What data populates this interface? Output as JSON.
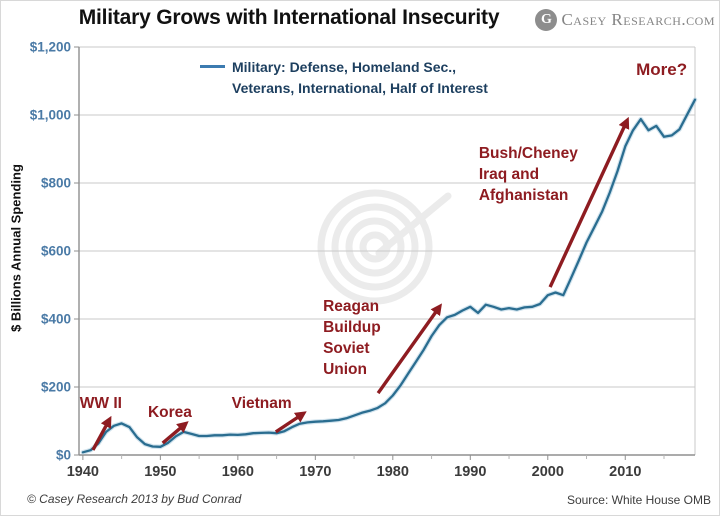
{
  "header": {
    "title": "Military Grows with International Insecurity",
    "logo": {
      "monogram": "G",
      "text": "Casey Research.com"
    }
  },
  "legend": {
    "label": "Military: Defense, Homeland Sec.,\nVeterans, International, Half of Interest"
  },
  "footer": {
    "left": "© Casey Research 2013 by Bud Conrad",
    "right": "Source: White House OMB"
  },
  "colors": {
    "line": "#2a6d90",
    "line_halo": "#b5d2e2",
    "legend_line": "#3c7bb0",
    "axis_label_blue": "#4a7aa6",
    "tick_label_dark": "#3b3b3b",
    "annotation_red": "#8e1c21",
    "grid": "#c9c9c9",
    "axis": "#8f8f8f",
    "minor_tick": "#b5b5b5",
    "watermark": "#ebebeb"
  },
  "chart_data": {
    "type": "line",
    "title": "Military Grows with International Insecurity",
    "ylabel": "$ Billions Annual Spending",
    "xlabel": "",
    "grid": true,
    "legend_position": "top-center",
    "x_range": [
      1939.5,
      2019
    ],
    "ylim": [
      0,
      1200
    ],
    "y_ticks": [
      {
        "value": 0,
        "label": "$0"
      },
      {
        "value": 200,
        "label": "$200"
      },
      {
        "value": 400,
        "label": "$400"
      },
      {
        "value": 600,
        "label": "$600"
      },
      {
        "value": 800,
        "label": "$800"
      },
      {
        "value": 1000,
        "label": "$1,000"
      },
      {
        "value": 1200,
        "label": "$1,200"
      }
    ],
    "x_ticks": [
      {
        "value": 1940,
        "label": "1940"
      },
      {
        "value": 1950,
        "label": "1950"
      },
      {
        "value": 1960,
        "label": "1960"
      },
      {
        "value": 1970,
        "label": "1970"
      },
      {
        "value": 1980,
        "label": "1980"
      },
      {
        "value": 1990,
        "label": "1990"
      },
      {
        "value": 2000,
        "label": "2000"
      },
      {
        "value": 2010,
        "label": "2010"
      }
    ],
    "x_minor_ticks": [
      1945,
      1955,
      1965,
      1975,
      1985,
      1995,
      2005,
      2015
    ],
    "series": [
      {
        "name": "Military: Defense, Homeland Sec., Veterans, International, Half of Interest",
        "x_start": 1940,
        "x_step": 1,
        "values": [
          8,
          14,
          34,
          68,
          86,
          93,
          82,
          52,
          32,
          25,
          24,
          36,
          55,
          68,
          62,
          56,
          56,
          58,
          58,
          60,
          59,
          61,
          64,
          65,
          66,
          64,
          70,
          82,
          92,
          96,
          98,
          99,
          101,
          103,
          108,
          116,
          124,
          130,
          138,
          152,
          175,
          205,
          240,
          275,
          310,
          350,
          382,
          405,
          412,
          425,
          436,
          418,
          442,
          436,
          428,
          432,
          428,
          434,
          436,
          444,
          470,
          478,
          470,
          520,
          572,
          625,
          670,
          715,
          772,
          835,
          908,
          955,
          988,
          955,
          968,
          936,
          940,
          958,
          1002,
          1045
        ]
      }
    ],
    "annotations": [
      {
        "id": "ww2",
        "kind": "label",
        "text": "WW II",
        "x": 1939.6,
        "y": 182,
        "arrow": {
          "x1": 1941.3,
          "y1": 15,
          "x2": 1943.4,
          "y2": 103
        }
      },
      {
        "id": "korea",
        "kind": "label",
        "text": "Korea",
        "x": 1948.4,
        "y": 156,
        "arrow": {
          "x1": 1950.3,
          "y1": 35,
          "x2": 1953.2,
          "y2": 91
        }
      },
      {
        "id": "vietnam",
        "kind": "label",
        "text": "Vietnam",
        "x": 1959.2,
        "y": 182,
        "arrow": {
          "x1": 1964.9,
          "y1": 68,
          "x2": 1968.4,
          "y2": 121
        }
      },
      {
        "id": "reagan-buildup",
        "kind": "label",
        "text": "Reagan\nBuildup\nSoviet\nUnion",
        "x": 1971.0,
        "y": 468,
        "arrow": {
          "x1": 1978.1,
          "y1": 182,
          "x2": 1986.0,
          "y2": 435
        }
      },
      {
        "id": "bush-cheney",
        "kind": "label",
        "text": "Bush/Cheney\nIraq and\nAfghanistan",
        "x": 1991.1,
        "y": 918,
        "arrow": {
          "x1": 2000.3,
          "y1": 494,
          "x2": 2010.2,
          "y2": 982
        }
      },
      {
        "id": "more",
        "kind": "question",
        "text": "More?",
        "x": 2011.4,
        "y": 1168
      }
    ]
  }
}
